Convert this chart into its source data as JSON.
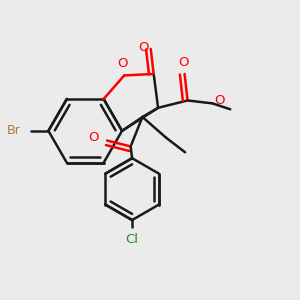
{
  "bg_color": "#ebebeb",
  "bond_color": "#1a1a1a",
  "O_color": "#ff0000",
  "Br_color": "#b87333",
  "Cl_color": "#228b22",
  "bond_lw": 1.8,
  "figsize": [
    3.0,
    3.0
  ],
  "dpi": 100,
  "xlim": [
    0.0,
    1.0
  ],
  "ylim": [
    0.0,
    1.0
  ]
}
